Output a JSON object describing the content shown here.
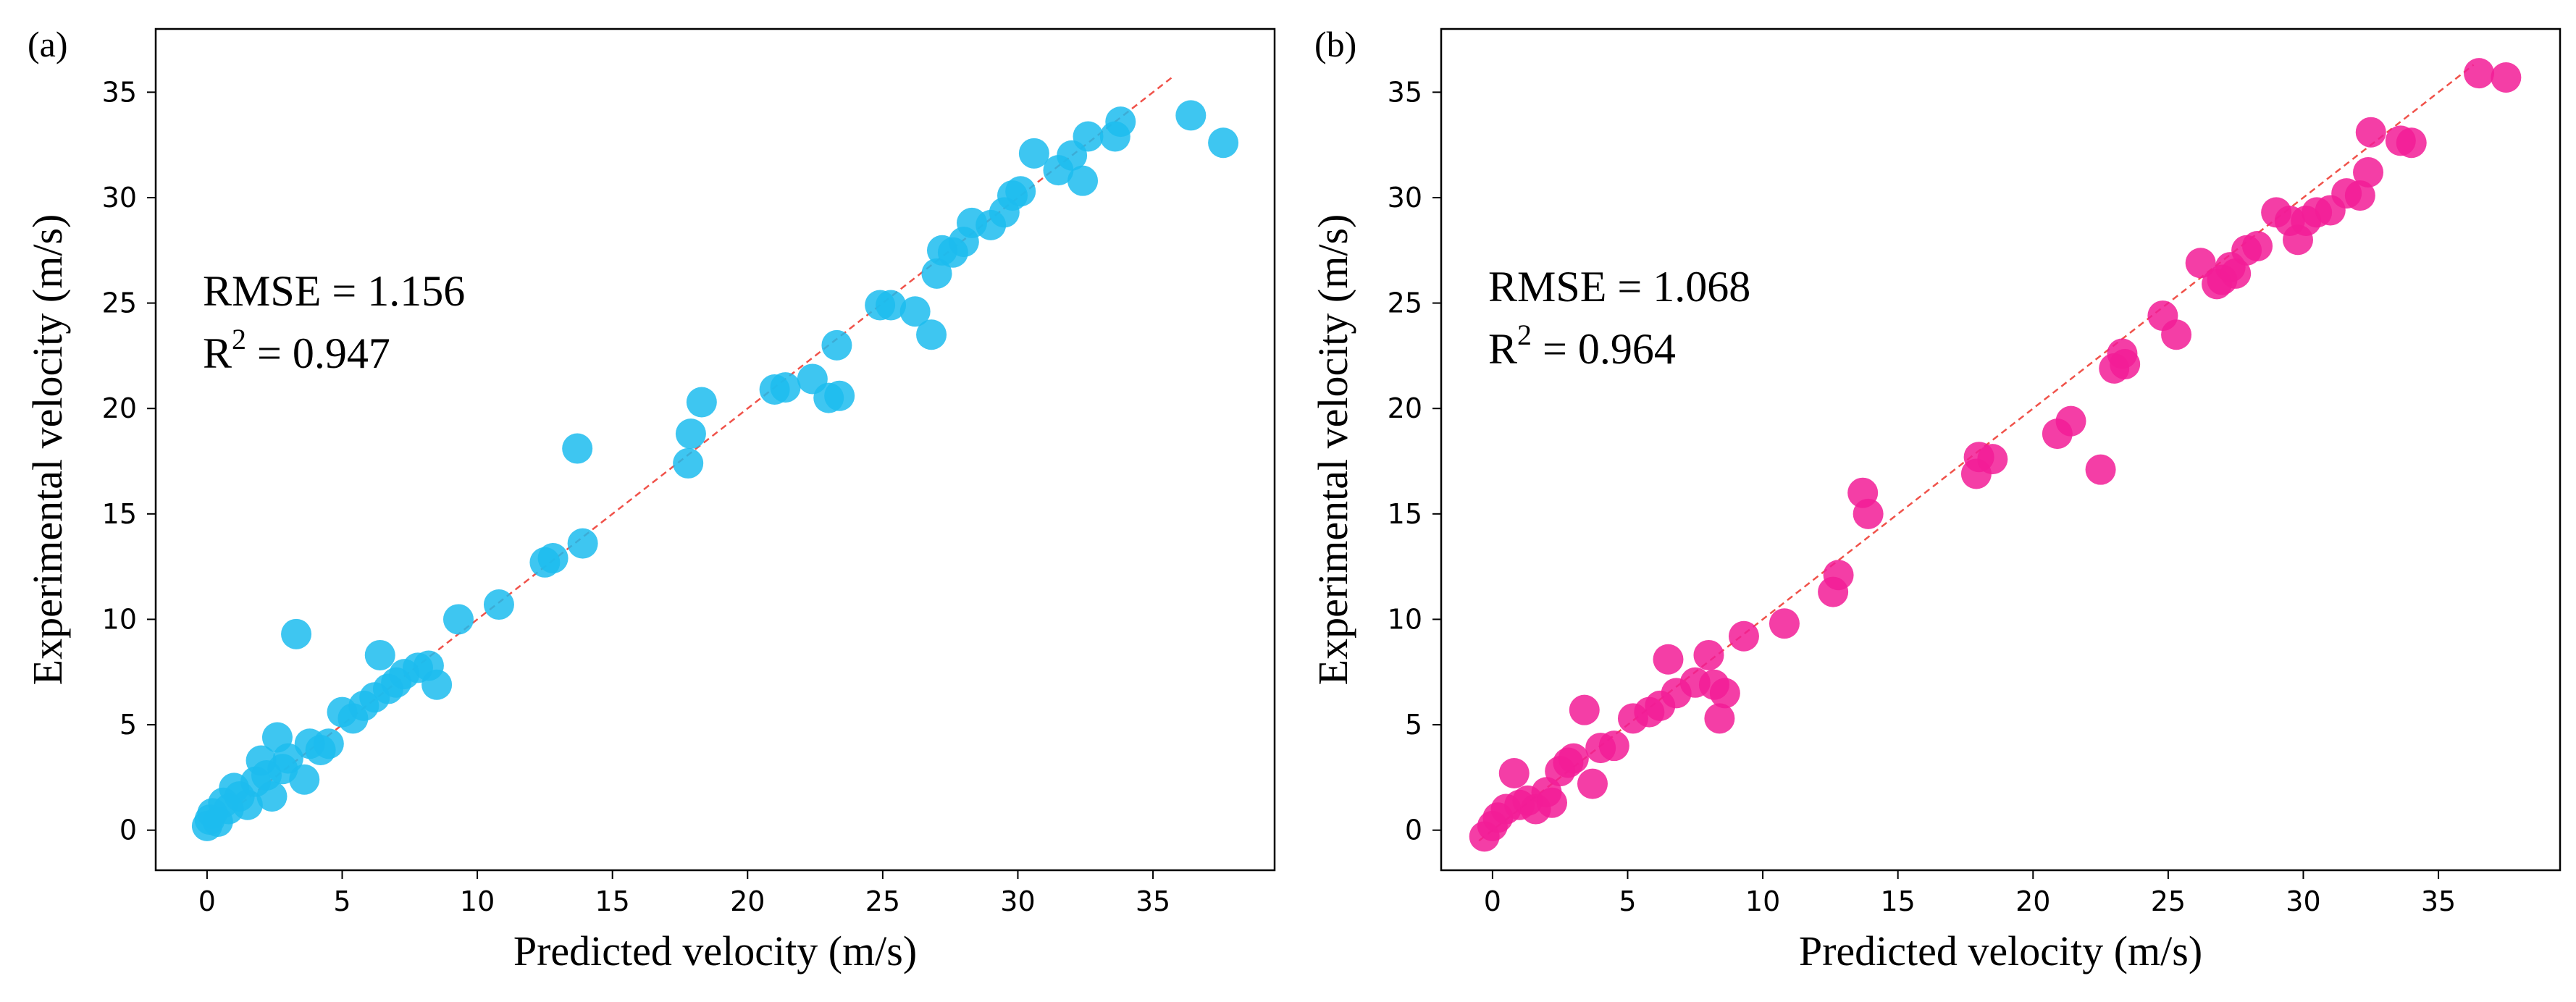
{
  "chart_data": [
    {
      "panel_label": "(a)",
      "type": "scatter",
      "xlabel": "Predicted velocity (m/s)",
      "ylabel": "Experimental velocity (m/s)",
      "xlim": [
        -1.9,
        39.5
      ],
      "ylim": [
        -1.9,
        38.0
      ],
      "xticks": [
        0,
        5,
        10,
        15,
        20,
        25,
        30,
        35
      ],
      "yticks": [
        0,
        5,
        10,
        15,
        20,
        25,
        30,
        35
      ],
      "grid": false,
      "annotations": {
        "rmse": "RMSE = 1.156",
        "r2_base": "R",
        "r2_sup": "2",
        "r2_value": " = 0.947"
      },
      "point_color": "#1cbcee",
      "fit_line_color": "#f0524a",
      "fit_line": [
        [
          0,
          0
        ],
        [
          35.8,
          35.8
        ]
      ],
      "series": [
        {
          "name": "samples",
          "points": [
            [
              0,
              0.2
            ],
            [
              0.1,
              0.5
            ],
            [
              0.2,
              0.8
            ],
            [
              0.4,
              0.4
            ],
            [
              0.6,
              1.3
            ],
            [
              0.8,
              1.0
            ],
            [
              1.0,
              2.0
            ],
            [
              1.2,
              1.6
            ],
            [
              1.5,
              1.2
            ],
            [
              1.8,
              2.3
            ],
            [
              2.0,
              3.3
            ],
            [
              2.2,
              2.6
            ],
            [
              2.4,
              1.6
            ],
            [
              2.6,
              4.4
            ],
            [
              2.8,
              2.9
            ],
            [
              3.0,
              3.4
            ],
            [
              3.3,
              9.3
            ],
            [
              3.6,
              2.4
            ],
            [
              3.8,
              4.1
            ],
            [
              4.2,
              3.8
            ],
            [
              4.5,
              4.1
            ],
            [
              5.0,
              5.6
            ],
            [
              5.4,
              5.3
            ],
            [
              5.8,
              5.9
            ],
            [
              6.2,
              6.3
            ],
            [
              6.4,
              8.3
            ],
            [
              6.7,
              6.7
            ],
            [
              7.0,
              7.0
            ],
            [
              7.3,
              7.4
            ],
            [
              7.8,
              7.7
            ],
            [
              8.2,
              7.8
            ],
            [
              8.5,
              6.9
            ],
            [
              9.3,
              10.0
            ],
            [
              10.8,
              10.7
            ],
            [
              12.5,
              12.7
            ],
            [
              12.8,
              12.9
            ],
            [
              13.7,
              18.1
            ],
            [
              13.9,
              13.6
            ],
            [
              17.8,
              17.4
            ],
            [
              17.9,
              18.8
            ],
            [
              18.3,
              20.3
            ],
            [
              21.0,
              20.9
            ],
            [
              21.4,
              21.0
            ],
            [
              22.4,
              21.4
            ],
            [
              23.0,
              20.5
            ],
            [
              23.3,
              23.0
            ],
            [
              23.4,
              20.6
            ],
            [
              24.9,
              24.9
            ],
            [
              25.3,
              24.9
            ],
            [
              26.2,
              24.6
            ],
            [
              26.8,
              23.5
            ],
            [
              27.0,
              26.4
            ],
            [
              27.2,
              27.5
            ],
            [
              27.6,
              27.4
            ],
            [
              28.0,
              27.9
            ],
            [
              28.3,
              28.8
            ],
            [
              29.0,
              28.7
            ],
            [
              29.5,
              29.3
            ],
            [
              29.8,
              30.1
            ],
            [
              30.1,
              30.3
            ],
            [
              30.6,
              32.1
            ],
            [
              31.5,
              31.3
            ],
            [
              32.0,
              32.0
            ],
            [
              32.4,
              30.8
            ],
            [
              32.6,
              32.9
            ],
            [
              33.6,
              32.9
            ],
            [
              33.8,
              33.6
            ],
            [
              36.4,
              33.9
            ],
            [
              37.6,
              32.6
            ]
          ]
        }
      ]
    },
    {
      "panel_label": "(b)",
      "type": "scatter",
      "xlabel": "Predicted velocity (m/s)",
      "ylabel": "Experimental velocity (m/s)",
      "xlim": [
        -1.9,
        39.5
      ],
      "ylim": [
        -1.9,
        38.0
      ],
      "xticks": [
        0,
        5,
        10,
        15,
        20,
        25,
        30,
        35
      ],
      "yticks": [
        0,
        5,
        10,
        15,
        20,
        25,
        30,
        35
      ],
      "grid": false,
      "annotations": {
        "rmse": "RMSE = 1.068",
        "r2_base": "R",
        "r2_sup": "2",
        "r2_value": " = 0.964"
      },
      "point_color": "#f21c96",
      "fit_line_color": "#f0524a",
      "fit_line": [
        [
          -0.5,
          -0.5
        ],
        [
          36.3,
          36.3
        ]
      ],
      "series": [
        {
          "name": "samples",
          "points": [
            [
              -0.3,
              -0.3
            ],
            [
              0,
              0.2
            ],
            [
              0.2,
              0.6
            ],
            [
              0.5,
              1.0
            ],
            [
              0.8,
              2.7
            ],
            [
              1.0,
              1.2
            ],
            [
              1.3,
              1.4
            ],
            [
              1.6,
              1.0
            ],
            [
              2.0,
              1.8
            ],
            [
              2.2,
              1.3
            ],
            [
              2.5,
              2.8
            ],
            [
              2.8,
              3.2
            ],
            [
              3.0,
              3.4
            ],
            [
              3.4,
              5.7
            ],
            [
              3.7,
              2.2
            ],
            [
              4.0,
              3.9
            ],
            [
              4.5,
              4.0
            ],
            [
              5.2,
              5.3
            ],
            [
              5.8,
              5.6
            ],
            [
              6.2,
              5.9
            ],
            [
              6.5,
              8.1
            ],
            [
              6.8,
              6.5
            ],
            [
              7.5,
              7.0
            ],
            [
              8.0,
              8.3
            ],
            [
              8.2,
              6.9
            ],
            [
              8.4,
              5.3
            ],
            [
              8.6,
              6.5
            ],
            [
              9.3,
              9.2
            ],
            [
              10.8,
              9.8
            ],
            [
              12.6,
              11.3
            ],
            [
              12.8,
              12.1
            ],
            [
              13.7,
              16.0
            ],
            [
              13.9,
              15.0
            ],
            [
              17.9,
              16.9
            ],
            [
              18.0,
              17.7
            ],
            [
              18.5,
              17.6
            ],
            [
              20.9,
              18.8
            ],
            [
              21.4,
              19.4
            ],
            [
              22.5,
              17.1
            ],
            [
              23.0,
              21.9
            ],
            [
              23.3,
              22.6
            ],
            [
              23.4,
              22.1
            ],
            [
              24.8,
              24.4
            ],
            [
              25.3,
              23.5
            ],
            [
              26.2,
              26.9
            ],
            [
              26.8,
              25.9
            ],
            [
              27.0,
              26.1
            ],
            [
              27.3,
              26.7
            ],
            [
              27.5,
              26.4
            ],
            [
              27.9,
              27.5
            ],
            [
              28.3,
              27.7
            ],
            [
              29.0,
              29.3
            ],
            [
              29.5,
              28.9
            ],
            [
              29.8,
              28.0
            ],
            [
              30.1,
              28.9
            ],
            [
              30.5,
              29.3
            ],
            [
              31.0,
              29.4
            ],
            [
              31.6,
              30.2
            ],
            [
              32.1,
              30.1
            ],
            [
              32.4,
              31.2
            ],
            [
              32.5,
              33.1
            ],
            [
              33.6,
              32.7
            ],
            [
              34.0,
              32.6
            ],
            [
              36.5,
              35.9
            ],
            [
              37.5,
              35.7
            ]
          ]
        }
      ]
    }
  ]
}
